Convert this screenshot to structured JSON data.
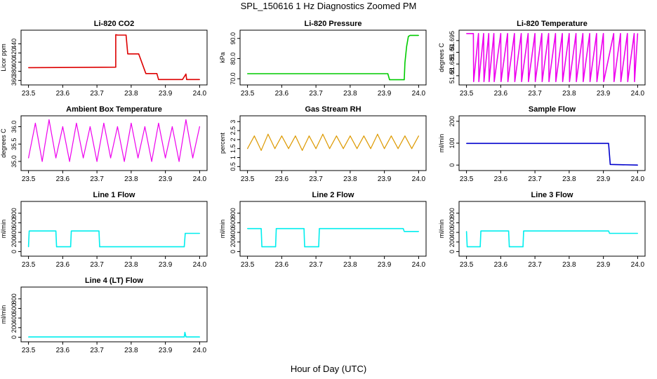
{
  "title": "SPL_150616  1 Hz Diagnostics Zoomed PM",
  "xlabel": "Hour of Day (UTC)",
  "chart_data": [
    {
      "type": "line",
      "title": "Li-820 CO2",
      "ylabel": "Licor ppm",
      "color": "#dd0000",
      "xlim": [
        23.5,
        24.0
      ],
      "ylim": [
        355,
        465
      ],
      "yticks": [
        360,
        380,
        400,
        420,
        440
      ],
      "xticks": [
        23.5,
        23.6,
        23.7,
        23.8,
        23.9,
        24.0
      ],
      "x": [
        23.5,
        23.755,
        23.755,
        23.76,
        23.785,
        23.79,
        23.815,
        23.822,
        23.843,
        23.85,
        23.875,
        23.88,
        23.95,
        23.96,
        23.962,
        23.97,
        24.0
      ],
      "y": [
        388,
        389,
        460,
        459,
        459,
        418,
        418,
        418,
        375,
        375,
        375,
        362,
        362,
        374,
        362,
        362,
        362
      ]
    },
    {
      "type": "line",
      "title": "Li-820 Pressure",
      "ylabel": "kPa",
      "color": "#00cc00",
      "xlim": [
        23.5,
        24.0
      ],
      "ylim": [
        68,
        93
      ],
      "yticks": [
        70,
        80,
        90
      ],
      "xticks": [
        23.5,
        23.6,
        23.7,
        23.8,
        23.9,
        24.0
      ],
      "x": [
        23.5,
        23.91,
        23.915,
        23.958,
        23.96,
        23.965,
        23.97,
        23.975,
        24.0
      ],
      "y": [
        72.5,
        72.5,
        69.5,
        69.5,
        78,
        86,
        91,
        91.5,
        91.5
      ]
    },
    {
      "type": "line",
      "title": "Li-820 Temperature",
      "ylabel": "degrees C",
      "color": "#ee00ee",
      "xlim": [
        23.5,
        24.0
      ],
      "ylim": [
        51.677,
        51.6985
      ],
      "yticks": [
        51.68,
        51.685,
        51.69,
        51.695
      ],
      "xticks": [
        23.5,
        23.6,
        23.7,
        23.8,
        23.9,
        24.0
      ],
      "x": [
        23.5,
        23.52,
        23.521,
        23.535,
        23.536,
        23.55,
        23.551,
        23.565,
        23.566,
        23.58,
        23.581,
        23.6,
        23.601,
        23.62,
        23.621,
        23.64,
        23.641,
        23.66,
        23.661,
        23.68,
        23.681,
        23.7,
        23.701,
        23.72,
        23.721,
        23.74,
        23.741,
        23.76,
        23.761,
        23.78,
        23.781,
        23.8,
        23.801,
        23.82,
        23.821,
        23.84,
        23.841,
        23.86,
        23.861,
        23.88,
        23.881,
        23.9,
        23.901,
        23.93,
        23.931,
        23.95,
        23.951,
        23.97,
        23.971,
        23.99,
        23.991,
        24.0
      ],
      "y": [
        51.698,
        51.698,
        51.6775,
        51.698,
        51.6775,
        51.698,
        51.6775,
        51.698,
        51.6775,
        51.698,
        51.6775,
        51.698,
        51.6775,
        51.698,
        51.6775,
        51.698,
        51.6775,
        51.698,
        51.6775,
        51.698,
        51.6775,
        51.698,
        51.6775,
        51.698,
        51.6775,
        51.698,
        51.6775,
        51.698,
        51.6775,
        51.698,
        51.6775,
        51.698,
        51.6775,
        51.698,
        51.6775,
        51.698,
        51.6775,
        51.698,
        51.6775,
        51.698,
        51.6775,
        51.698,
        51.6775,
        51.698,
        51.6775,
        51.698,
        51.6775,
        51.698,
        51.6775,
        51.698,
        51.6775,
        51.698
      ]
    },
    {
      "type": "line",
      "title": "Ambient Box Temperature",
      "ylabel": "degrees C",
      "color": "#ee00ee",
      "xlim": [
        23.5,
        24.0
      ],
      "ylim": [
        34.8,
        36.25
      ],
      "yticks": [
        35.0,
        35.5,
        36.0
      ],
      "xticks": [
        23.5,
        23.6,
        23.7,
        23.8,
        23.9,
        24.0
      ],
      "x": [
        23.5,
        23.52,
        23.54,
        23.56,
        23.58,
        23.6,
        23.62,
        23.64,
        23.66,
        23.68,
        23.7,
        23.72,
        23.74,
        23.76,
        23.78,
        23.8,
        23.82,
        23.84,
        23.86,
        23.88,
        23.9,
        23.92,
        23.94,
        23.96,
        23.98,
        24.0
      ],
      "y": [
        35.1,
        36.1,
        35.0,
        36.2,
        35.1,
        36.0,
        35.0,
        36.1,
        35.1,
        36.0,
        35.0,
        36.1,
        35.1,
        36.0,
        35.0,
        36.1,
        35.1,
        36.0,
        35.0,
        36.1,
        35.1,
        36.0,
        35.0,
        36.2,
        35.1,
        36.0
      ]
    },
    {
      "type": "line",
      "title": "Gas Stream RH",
      "ylabel": "percent",
      "color": "#dd9900",
      "xlim": [
        23.5,
        24.0
      ],
      "ylim": [
        0.4,
        3.2
      ],
      "yticks": [
        0.5,
        1.0,
        1.5,
        2.0,
        2.5,
        3.0
      ],
      "xticks": [
        23.5,
        23.6,
        23.7,
        23.8,
        23.9,
        24.0
      ],
      "x": [
        23.5,
        23.52,
        23.54,
        23.56,
        23.58,
        23.6,
        23.62,
        23.64,
        23.66,
        23.68,
        23.7,
        23.72,
        23.74,
        23.76,
        23.78,
        23.8,
        23.82,
        23.84,
        23.86,
        23.88,
        23.9,
        23.92,
        23.94,
        23.96,
        23.98,
        24.0
      ],
      "y": [
        1.5,
        2.2,
        1.4,
        2.3,
        1.5,
        2.2,
        1.5,
        2.2,
        1.4,
        2.2,
        1.5,
        2.3,
        1.5,
        2.2,
        1.5,
        2.2,
        1.5,
        2.2,
        1.5,
        2.3,
        1.5,
        2.2,
        1.5,
        2.2,
        1.5,
        2.2
      ]
    },
    {
      "type": "line",
      "title": "Sample Flow",
      "ylabel": "ml/min",
      "color": "#0000cc",
      "xlim": [
        23.5,
        24.0
      ],
      "ylim": [
        -15,
        215
      ],
      "yticks": [
        0,
        100,
        200
      ],
      "xticks": [
        23.5,
        23.6,
        23.7,
        23.8,
        23.9,
        24.0
      ],
      "x": [
        23.5,
        23.915,
        23.92,
        24.0
      ],
      "y": [
        99,
        99,
        3,
        0
      ]
    },
    {
      "type": "line",
      "title": "Line 1 Flow",
      "ylabel": "ml/min",
      "color": "#00eeee",
      "xlim": [
        23.5,
        24.0
      ],
      "ylim": [
        -50,
        1000
      ],
      "yticks": [
        0,
        200,
        400,
        600,
        800
      ],
      "xticks": [
        23.5,
        23.6,
        23.7,
        23.8,
        23.9,
        24.0
      ],
      "x": [
        23.5,
        23.502,
        23.58,
        23.582,
        23.623,
        23.625,
        23.706,
        23.708,
        23.955,
        23.958,
        24.0
      ],
      "y": [
        100,
        430,
        430,
        100,
        100,
        430,
        430,
        100,
        100,
        380,
        380
      ]
    },
    {
      "type": "line",
      "title": "Line 2 Flow",
      "ylabel": "ml/min",
      "color": "#00eeee",
      "xlim": [
        23.5,
        24.0
      ],
      "ylim": [
        -50,
        1000
      ],
      "yticks": [
        0,
        200,
        400,
        600,
        800
      ],
      "xticks": [
        23.5,
        23.6,
        23.7,
        23.8,
        23.9,
        24.0
      ],
      "x": [
        23.5,
        23.54,
        23.542,
        23.582,
        23.584,
        23.665,
        23.667,
        23.708,
        23.71,
        23.955,
        23.958,
        24.0
      ],
      "y": [
        480,
        480,
        100,
        100,
        480,
        480,
        100,
        100,
        480,
        480,
        420,
        420
      ]
    },
    {
      "type": "line",
      "title": "Line 3 Flow",
      "ylabel": "ml/min",
      "color": "#00eeee",
      "xlim": [
        23.5,
        24.0
      ],
      "ylim": [
        -50,
        1000
      ],
      "yticks": [
        0,
        200,
        400,
        600,
        800
      ],
      "xticks": [
        23.5,
        23.6,
        23.7,
        23.8,
        23.9,
        24.0
      ],
      "x": [
        23.5,
        23.502,
        23.54,
        23.542,
        23.623,
        23.625,
        23.665,
        23.667,
        23.915,
        23.918,
        24.0
      ],
      "y": [
        420,
        100,
        100,
        430,
        430,
        100,
        100,
        430,
        430,
        380,
        380
      ]
    },
    {
      "type": "line",
      "title": "Line 4 (LT) Flow",
      "ylabel": "ml/min",
      "color": "#00eeee",
      "xlim": [
        23.5,
        24.0
      ],
      "ylim": [
        -50,
        1000
      ],
      "yticks": [
        0,
        200,
        400,
        600,
        800
      ],
      "xticks": [
        23.5,
        23.6,
        23.7,
        23.8,
        23.9,
        24.0
      ],
      "x": [
        23.5,
        23.955,
        23.957,
        23.96,
        23.962,
        24.0
      ],
      "y": [
        5,
        5,
        100,
        10,
        5,
        5
      ]
    }
  ]
}
